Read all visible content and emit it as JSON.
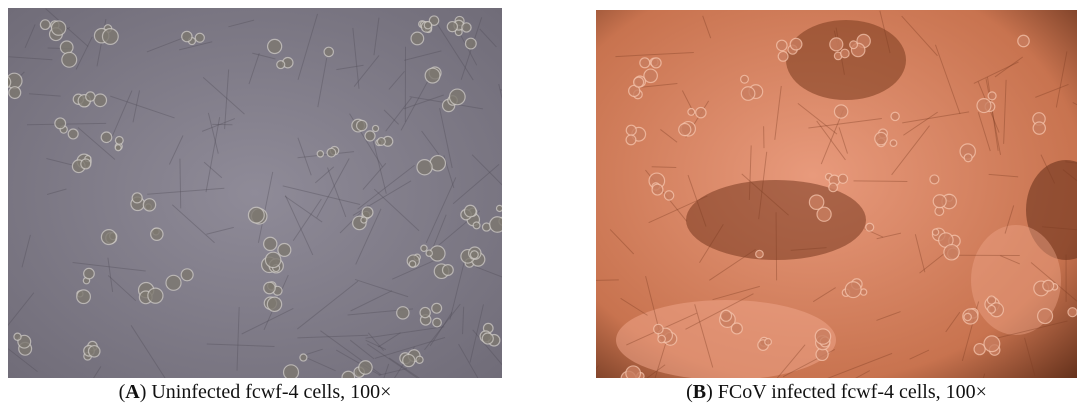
{
  "panels": [
    {
      "open": "(",
      "label": "A",
      "caption": ") Uninfected fcwf-4 cells, 100×"
    },
    {
      "open": "(",
      "label": "B",
      "caption": ") FCoV infected fcwf-4 cells, 100×"
    }
  ]
}
